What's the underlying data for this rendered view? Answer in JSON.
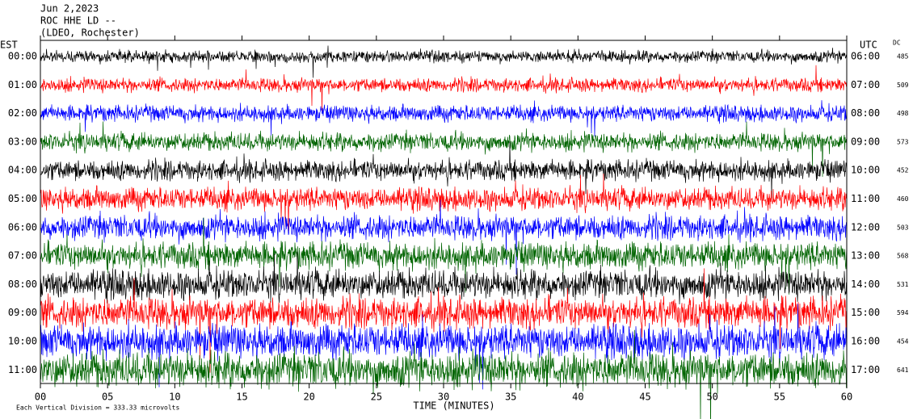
{
  "header": {
    "date": "Jun 2,2023",
    "station": "ROC HHE LD --",
    "location": "(LDEO, Rochester)"
  },
  "left_label": "EST",
  "right_label": "UTC",
  "dc_label": "DC",
  "rows": [
    {
      "est": "00:00",
      "utc": "06:00",
      "dc": 485,
      "color": "#000000"
    },
    {
      "est": "01:00",
      "utc": "07:00",
      "dc": 509,
      "color": "#ff0000"
    },
    {
      "est": "02:00",
      "utc": "08:00",
      "dc": 498,
      "color": "#0000ff"
    },
    {
      "est": "03:00",
      "utc": "09:00",
      "dc": 573,
      "color": "#006400"
    },
    {
      "est": "04:00",
      "utc": "10:00",
      "dc": 452,
      "color": "#000000"
    },
    {
      "est": "05:00",
      "utc": "11:00",
      "dc": 460,
      "color": "#ff0000"
    },
    {
      "est": "06:00",
      "utc": "12:00",
      "dc": 503,
      "color": "#0000ff"
    },
    {
      "est": "07:00",
      "utc": "13:00",
      "dc": 568,
      "color": "#006400"
    },
    {
      "est": "08:00",
      "utc": "14:00",
      "dc": 531,
      "color": "#000000"
    },
    {
      "est": "09:00",
      "utc": "15:00",
      "dc": 594,
      "color": "#ff0000"
    },
    {
      "est": "10:00",
      "utc": "16:00",
      "dc": 454,
      "color": "#0000ff"
    },
    {
      "est": "11:00",
      "utc": "17:00",
      "dc": 641,
      "color": "#006400"
    }
  ],
  "xlim": [
    0,
    60
  ],
  "xticks": [
    {
      "value": 0,
      "label": "00"
    },
    {
      "value": 5,
      "label": "05"
    },
    10,
    15,
    20,
    25,
    30,
    35,
    40,
    45,
    50,
    55,
    60
  ],
  "x_label": "TIME (MINUTES)",
  "footer": "Each Vertical Division = 333.33 microvolts"
}
